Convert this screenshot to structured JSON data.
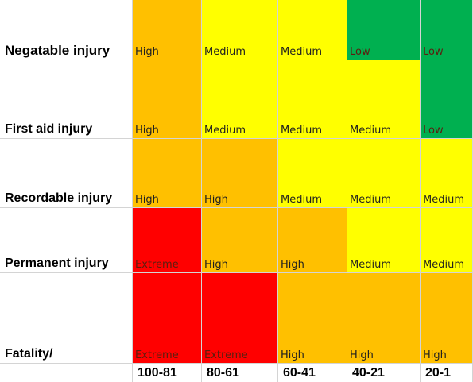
{
  "colors": {
    "extreme": "#ff0000",
    "high": "#ffc000",
    "medium": "#ffff00",
    "low": "#00b050"
  },
  "row_labels": [
    "Negatable injury",
    "First aid injury",
    "Recordable injury",
    "Permanent injury",
    "Fatality/"
  ],
  "column_labels": [
    "100-81",
    "80-61",
    "60-41",
    "40-21",
    "20-1"
  ],
  "ratings": [
    [
      "High",
      "Medium",
      "Medium",
      "Low",
      "Low"
    ],
    [
      "High",
      "Medium",
      "Medium",
      "Medium",
      "Low"
    ],
    [
      "High",
      "High",
      "Medium",
      "Medium",
      "Medium"
    ],
    [
      "Extreme",
      "High",
      "High",
      "Medium",
      "Medium"
    ],
    [
      "Extreme",
      "Extreme",
      "High",
      "High",
      "High"
    ]
  ]
}
